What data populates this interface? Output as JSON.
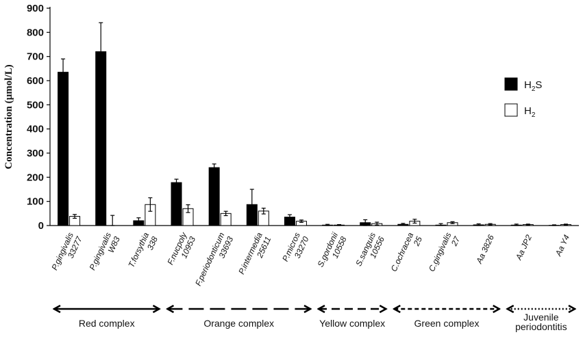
{
  "chart_data": {
    "type": "bar",
    "title": "",
    "ylabel": "Concentration (µmol/L)",
    "xlabel": "",
    "ylim": [
      0,
      900
    ],
    "yticks": [
      0,
      100,
      200,
      300,
      400,
      500,
      600,
      700,
      800,
      900
    ],
    "grid": false,
    "legend_position": "right",
    "categories": [
      [
        "P.gingivalis",
        "33277"
      ],
      [
        "P.gingivalis",
        "W83"
      ],
      [
        "T.forsythia",
        "338"
      ],
      [
        "F.nucpoly",
        "10953"
      ],
      [
        "F.periodonticum",
        "33693"
      ],
      [
        "P.intermedia",
        "25611"
      ],
      [
        "P.micros",
        "33270"
      ],
      [
        "S.gordonii",
        "10558"
      ],
      [
        "S.sanguis",
        "10556"
      ],
      [
        "C.ochracea",
        "25"
      ],
      [
        "C.gingivalis",
        "27"
      ],
      [
        "Aa 3826"
      ],
      [
        "Aa JP2"
      ],
      [
        "Aa Y4"
      ]
    ],
    "series": [
      {
        "name": "H2S",
        "legend_main": "H",
        "legend_sub": "2",
        "legend_tail": "S",
        "color": "#000000",
        "values": [
          635,
          720,
          20,
          178,
          240,
          87,
          35,
          2,
          12,
          5,
          2,
          3,
          2,
          1
        ],
        "errors": [
          55,
          120,
          12,
          14,
          15,
          63,
          10,
          3,
          12,
          4,
          6,
          4,
          4,
          2
        ]
      },
      {
        "name": "H2",
        "legend_main": "H",
        "legend_sub": "2",
        "legend_tail": "",
        "color": "#ffffff",
        "values": [
          38,
          0,
          87,
          70,
          50,
          60,
          18,
          2,
          8,
          18,
          12,
          5,
          4,
          4
        ],
        "errors": [
          8,
          42,
          28,
          16,
          9,
          12,
          5,
          2,
          6,
          8,
          4,
          3,
          2,
          2
        ]
      }
    ],
    "groups": [
      {
        "label": [
          "Red complex"
        ],
        "from": 0,
        "to": 2,
        "style": "solid"
      },
      {
        "label": [
          "Orange complex"
        ],
        "from": 3,
        "to": 6,
        "style": "longdash"
      },
      {
        "label": [
          "Yellow complex"
        ],
        "from": 7,
        "to": 8,
        "style": "dash"
      },
      {
        "label": [
          "Green complex"
        ],
        "from": 9,
        "to": 11,
        "style": "shortdash"
      },
      {
        "label": [
          "Juvenile",
          "periodontitis"
        ],
        "from": 12,
        "to": 13,
        "style": "dot"
      }
    ]
  }
}
